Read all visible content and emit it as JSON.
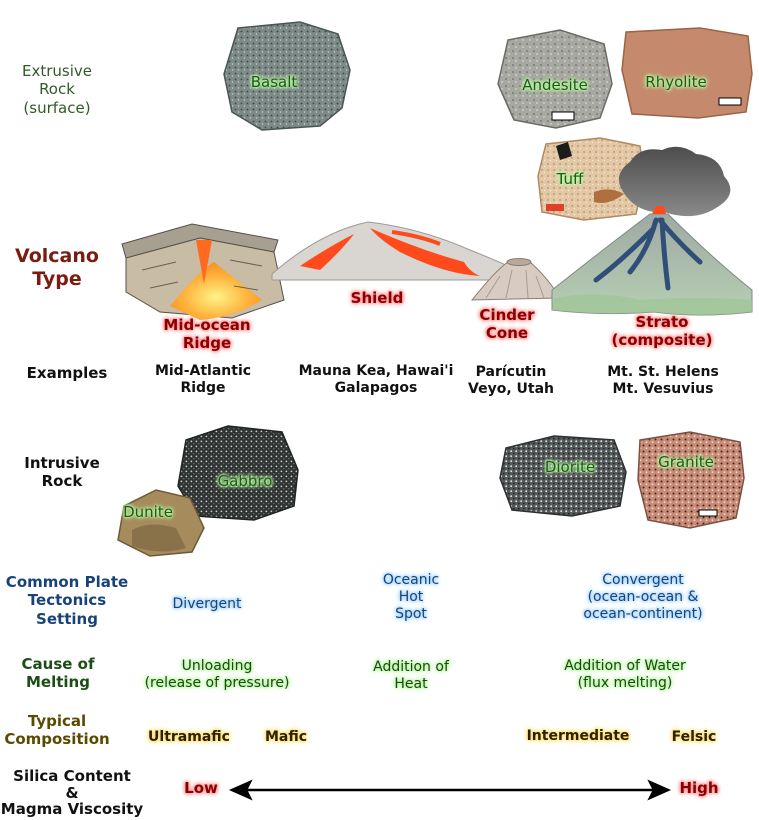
{
  "row_labels": {
    "extrusive": [
      "Extrusive",
      "Rock",
      "(surface)"
    ],
    "volcano": [
      "Volcano",
      "Type"
    ],
    "examples": "Examples",
    "intrusive": [
      "Intrusive",
      "Rock"
    ],
    "plate": [
      "Common Plate",
      "Tectonics",
      "Setting"
    ],
    "melting": [
      "Cause of",
      "Melting"
    ],
    "composition": [
      "Typical",
      "Composition"
    ],
    "silica": [
      "Silica Content",
      "&",
      "Magma Viscosity"
    ]
  },
  "extrusive_rocks": {
    "basalt": "Basalt",
    "andesite": "Andesite",
    "rhyolite": "Rhyolite",
    "tuff": "Tuff"
  },
  "volcano_types": {
    "mid_ocean": [
      "Mid-ocean",
      "Ridge"
    ],
    "shield": "Shield",
    "cinder": [
      "Cinder",
      "Cone"
    ],
    "strato": [
      "Strato",
      "(composite)"
    ]
  },
  "examples": {
    "mid_ocean": [
      "Mid-Atlantic",
      "Ridge"
    ],
    "shield": [
      "Mauna Kea, Hawai'i",
      "Galapagos"
    ],
    "cinder": [
      "Parícutin",
      "Veyo, Utah"
    ],
    "strato": [
      "Mt. St. Helens",
      "Mt. Vesuvius"
    ]
  },
  "intrusive_rocks": {
    "dunite": "Dunite",
    "gabbro": "Gabbro",
    "diorite": "Diorite",
    "granite": "Granite"
  },
  "plate_settings": {
    "divergent": "Divergent",
    "oceanic": [
      "Oceanic",
      "Hot",
      "Spot"
    ],
    "convergent": [
      "Convergent",
      "(ocean-ocean &",
      "ocean-continent)"
    ]
  },
  "melting": {
    "unloading": [
      "Unloading",
      "(release of pressure)"
    ],
    "heat": [
      "Addition of",
      "Heat"
    ],
    "water": [
      "Addition of Water",
      "(flux melting)"
    ]
  },
  "composition": {
    "ultramafic": "Ultramafic",
    "mafic": "Mafic",
    "intermediate": "Intermediate",
    "felsic": "Felsic"
  },
  "silica": {
    "low": "Low",
    "high": "High"
  },
  "colors": {
    "green_glow": "#bdf7a8",
    "blue_glow": "#a8d4ff",
    "red_glow": "#ff9b9b",
    "yellow_glow": "#ffe17a",
    "lava": "#ff4a1c"
  }
}
